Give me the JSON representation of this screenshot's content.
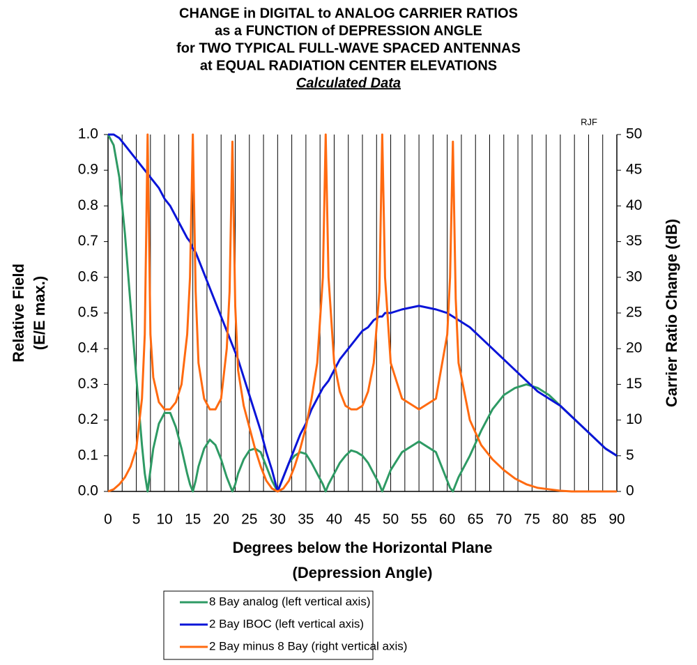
{
  "chart_data": {
    "type": "line",
    "title": [
      "CHANGE in DIGITAL to ANALOG CARRIER RATIOS",
      "as a FUNCTION of DEPRESSION ANGLE",
      "for TWO TYPICAL FULL-WAVE SPACED ANTENNAS",
      "at EQUAL RADIATION CENTER ELEVATIONS"
    ],
    "subtitle": "Calculated Data",
    "annotation": "RJF",
    "x_label": [
      "Degrees below the Horizontal Plane",
      "(Depression Angle)"
    ],
    "y_label": [
      "Relative Field",
      "(E/E max.)"
    ],
    "y2_label": "Carrier Ratio Change (dB)",
    "x": [
      0,
      1,
      2,
      3,
      4,
      5,
      6,
      6.5,
      7,
      7.5,
      8,
      9,
      10,
      11,
      12,
      13,
      14,
      14.5,
      15,
      15.5,
      16,
      17,
      18,
      19,
      20,
      21,
      21.5,
      22,
      22.5,
      23,
      24,
      25,
      26,
      27,
      28,
      29,
      30,
      31,
      32,
      33,
      34,
      35,
      36,
      37,
      38,
      38.5,
      39,
      40,
      41,
      42,
      43,
      44,
      45,
      46,
      47,
      48,
      48.5,
      49,
      50,
      52,
      55,
      58,
      60,
      60.5,
      61,
      61.5,
      62,
      64,
      66,
      68,
      70,
      72,
      74,
      76,
      78,
      80,
      82,
      84,
      86,
      88,
      90
    ],
    "series": [
      {
        "name": "8 Bay analog (left vertical axis)",
        "color": "#2e9a64",
        "values": [
          1.0,
          0.97,
          0.88,
          0.72,
          0.52,
          0.32,
          0.13,
          0.05,
          0,
          0.06,
          0.12,
          0.19,
          0.22,
          0.22,
          0.18,
          0.12,
          0.05,
          0.02,
          0,
          0.03,
          0.07,
          0.12,
          0.145,
          0.13,
          0.09,
          0.04,
          0.02,
          0,
          0.02,
          0.05,
          0.09,
          0.115,
          0.12,
          0.11,
          0.07,
          0.03,
          0,
          0.04,
          0.08,
          0.1,
          0.11,
          0.105,
          0.08,
          0.05,
          0.02,
          0,
          0.02,
          0.05,
          0.08,
          0.1,
          0.115,
          0.11,
          0.1,
          0.08,
          0.05,
          0.02,
          0,
          0.02,
          0.06,
          0.11,
          0.14,
          0.11,
          0.03,
          0.01,
          0,
          0.02,
          0.04,
          0.1,
          0.17,
          0.23,
          0.27,
          0.29,
          0.3,
          0.29,
          0.27,
          0.24,
          0.21,
          0.18,
          0.15,
          0.12,
          0.1
        ]
      },
      {
        "name": "2 Bay IBOC (left vertical axis)",
        "color": "#0a14d8",
        "values": [
          1,
          1,
          0.99,
          0.97,
          0.95,
          0.93,
          0.91,
          0.9,
          0.89,
          0.88,
          0.87,
          0.85,
          0.82,
          0.8,
          0.77,
          0.74,
          0.71,
          0.7,
          0.68,
          0.67,
          0.65,
          0.61,
          0.57,
          0.53,
          0.49,
          0.45,
          0.43,
          0.41,
          0.39,
          0.37,
          0.32,
          0.27,
          0.22,
          0.17,
          0.11,
          0.06,
          0,
          0.04,
          0.08,
          0.12,
          0.16,
          0.19,
          0.23,
          0.26,
          0.29,
          0.3,
          0.31,
          0.34,
          0.37,
          0.39,
          0.41,
          0.43,
          0.45,
          0.46,
          0.48,
          0.49,
          0.49,
          0.5,
          0.5,
          0.51,
          0.52,
          0.51,
          0.5,
          0.495,
          0.49,
          0.485,
          0.48,
          0.46,
          0.43,
          0.4,
          0.37,
          0.34,
          0.31,
          0.28,
          0.26,
          0.24,
          0.21,
          0.18,
          0.15,
          0.12,
          0.1
        ]
      },
      {
        "name": "2 Bay minus 8 Bay (right vertical axis)",
        "color": "#ff6a10",
        "axis": "y2",
        "values": [
          0,
          0.3,
          1,
          2,
          3.5,
          6,
          13,
          22,
          50,
          22,
          16,
          12.5,
          11.5,
          11.5,
          12.5,
          15,
          22,
          30,
          50,
          28,
          18,
          13,
          11.5,
          11.5,
          13,
          20,
          28,
          49,
          26,
          17,
          12,
          9,
          6,
          3.5,
          1.5,
          0.4,
          0,
          0.4,
          1.5,
          3.5,
          6,
          9,
          13,
          18,
          30,
          50,
          30,
          18,
          14,
          12,
          11.5,
          11.5,
          12,
          14,
          18,
          28,
          50,
          30,
          18,
          13,
          11.5,
          13,
          22,
          30,
          49,
          27,
          18,
          10,
          6.5,
          4.5,
          3,
          1.8,
          1,
          0.5,
          0.3,
          0.1,
          0,
          0,
          0,
          0,
          0
        ]
      }
    ],
    "xlim": [
      0,
      90
    ],
    "xticks": [
      0,
      5,
      10,
      15,
      20,
      25,
      30,
      35,
      40,
      45,
      50,
      55,
      60,
      65,
      70,
      75,
      80,
      85,
      90
    ],
    "ylim": [
      0,
      1
    ],
    "yticks": [
      {
        "value": 0,
        "label": "0.0"
      },
      {
        "value": 0.1,
        "label": "0.1"
      },
      {
        "value": 0.2,
        "label": "0.2"
      },
      {
        "value": 0.3,
        "label": "0.3"
      },
      {
        "value": 0.4,
        "label": "0.4"
      },
      {
        "value": 0.5,
        "label": "0.5"
      },
      {
        "value": 0.6,
        "label": "0.6"
      },
      {
        "value": 0.7,
        "label": "0.7"
      },
      {
        "value": 0.8,
        "label": "0.8"
      },
      {
        "value": 0.9,
        "label": "0.9"
      },
      {
        "value": 1,
        "label": "1.0"
      }
    ],
    "y2lim": [
      0,
      50
    ],
    "y2ticks": [
      0,
      5,
      10,
      15,
      20,
      25,
      30,
      35,
      40,
      45,
      50
    ],
    "grid": "x"
  }
}
